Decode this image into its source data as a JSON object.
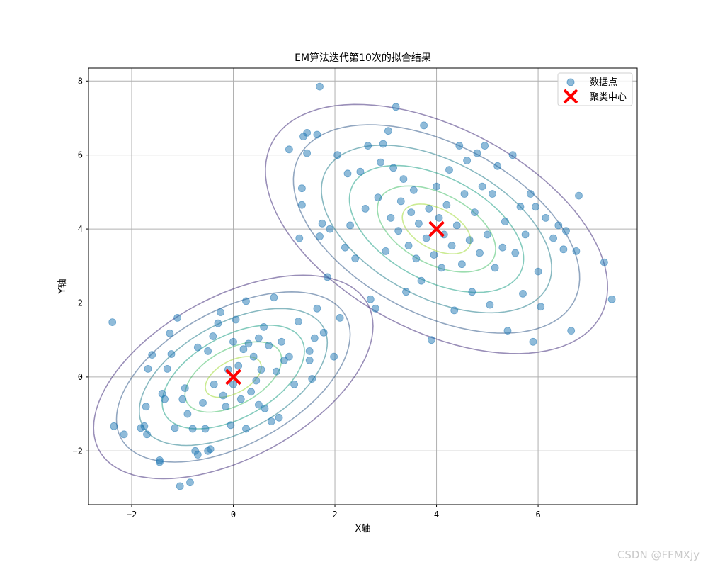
{
  "watermark": "CSDN @FFMXjy",
  "chart_data": {
    "type": "scatter",
    "title": "EM算法迭代第10次的拟合结果",
    "xlabel": "X轴",
    "ylabel": "Y轴",
    "xlim": [
      -2.85,
      7.95
    ],
    "ylim": [
      -3.45,
      8.35
    ],
    "xticks": [
      -2,
      0,
      2,
      4,
      6
    ],
    "yticks": [
      -2,
      0,
      2,
      4,
      6,
      8
    ],
    "grid": true,
    "legend_position": "top-right",
    "colors": {
      "points": "#1f77b4",
      "centers": "#ff0000",
      "contours": [
        "#46327e",
        "#365c8d",
        "#277f8e",
        "#1fa187",
        "#4ac16d",
        "#a0da39"
      ]
    },
    "series": [
      {
        "name": "数据点",
        "marker": "circle",
        "points": [
          [
            -2.38,
            1.48
          ],
          [
            -2.35,
            -1.33
          ],
          [
            -2.15,
            -1.55
          ],
          [
            -1.82,
            -1.38
          ],
          [
            -1.75,
            -1.33
          ],
          [
            -1.72,
            -0.8
          ],
          [
            -1.7,
            -1.55
          ],
          [
            -1.68,
            0.22
          ],
          [
            -1.6,
            0.6
          ],
          [
            -1.45,
            -2.25
          ],
          [
            -1.45,
            -2.3
          ],
          [
            -1.4,
            -0.45
          ],
          [
            -1.35,
            -0.6
          ],
          [
            -1.3,
            0.22
          ],
          [
            -1.25,
            1.18
          ],
          [
            -1.22,
            0.62
          ],
          [
            -1.15,
            -1.38
          ],
          [
            -1.1,
            1.6
          ],
          [
            -1.05,
            -2.95
          ],
          [
            -1.0,
            -0.6
          ],
          [
            -0.95,
            -0.3
          ],
          [
            -0.9,
            -1.0
          ],
          [
            -0.85,
            -2.85
          ],
          [
            -0.8,
            -1.4
          ],
          [
            -0.75,
            -2.0
          ],
          [
            -0.7,
            -2.1
          ],
          [
            -0.7,
            0.8
          ],
          [
            -0.6,
            -0.7
          ],
          [
            -0.55,
            -1.4
          ],
          [
            -0.5,
            0.7
          ],
          [
            -0.5,
            -2.0
          ],
          [
            -0.45,
            -1.95
          ],
          [
            -0.4,
            1.1
          ],
          [
            -0.38,
            -0.2
          ],
          [
            -0.3,
            1.45
          ],
          [
            -0.25,
            1.75
          ],
          [
            -0.2,
            -0.5
          ],
          [
            -0.15,
            -0.8
          ],
          [
            -0.1,
            0.2
          ],
          [
            -0.05,
            -1.3
          ],
          [
            0.0,
            0.95
          ],
          [
            0.0,
            -0.2
          ],
          [
            0.05,
            1.55
          ],
          [
            0.1,
            0.3
          ],
          [
            0.15,
            -0.6
          ],
          [
            0.2,
            0.75
          ],
          [
            0.25,
            -1.4
          ],
          [
            0.25,
            2.05
          ],
          [
            0.3,
            0.9
          ],
          [
            0.35,
            -0.4
          ],
          [
            0.4,
            0.55
          ],
          [
            0.45,
            -0.1
          ],
          [
            0.5,
            1.05
          ],
          [
            0.5,
            -0.75
          ],
          [
            0.55,
            0.2
          ],
          [
            0.6,
            1.35
          ],
          [
            0.62,
            -0.85
          ],
          [
            0.7,
            0.85
          ],
          [
            0.75,
            -1.2
          ],
          [
            0.8,
            2.15
          ],
          [
            0.85,
            0.15
          ],
          [
            0.9,
            -1.1
          ],
          [
            0.95,
            0.95
          ],
          [
            1.0,
            0.45
          ],
          [
            1.1,
            0.55
          ],
          [
            1.1,
            6.15
          ],
          [
            1.2,
            -0.2
          ],
          [
            1.28,
            1.5
          ],
          [
            1.3,
            3.75
          ],
          [
            1.35,
            4.65
          ],
          [
            1.35,
            5.1
          ],
          [
            1.38,
            6.5
          ],
          [
            1.45,
            6.6
          ],
          [
            1.45,
            6.05
          ],
          [
            1.5,
            0.45
          ],
          [
            1.5,
            0.7
          ],
          [
            1.55,
            -0.05
          ],
          [
            1.6,
            1.05
          ],
          [
            1.65,
            1.85
          ],
          [
            1.65,
            6.55
          ],
          [
            1.7,
            7.85
          ],
          [
            1.7,
            3.8
          ],
          [
            1.75,
            4.15
          ],
          [
            1.78,
            1.2
          ],
          [
            1.85,
            2.7
          ],
          [
            1.9,
            4.0
          ],
          [
            1.98,
            0.55
          ],
          [
            2.05,
            6.0
          ],
          [
            2.1,
            1.6
          ],
          [
            2.2,
            3.5
          ],
          [
            2.25,
            5.5
          ],
          [
            2.3,
            4.1
          ],
          [
            2.4,
            3.2
          ],
          [
            2.5,
            5.55
          ],
          [
            2.6,
            4.55
          ],
          [
            2.65,
            6.25
          ],
          [
            2.7,
            2.1
          ],
          [
            2.8,
            1.85
          ],
          [
            2.85,
            4.85
          ],
          [
            2.9,
            5.8
          ],
          [
            2.95,
            6.3
          ],
          [
            3.0,
            3.4
          ],
          [
            3.05,
            6.65
          ],
          [
            3.1,
            4.3
          ],
          [
            3.15,
            5.65
          ],
          [
            3.2,
            7.3
          ],
          [
            3.25,
            3.95
          ],
          [
            3.3,
            4.75
          ],
          [
            3.35,
            5.35
          ],
          [
            3.4,
            2.3
          ],
          [
            3.45,
            3.55
          ],
          [
            3.5,
            4.45
          ],
          [
            3.55,
            5.05
          ],
          [
            3.6,
            3.2
          ],
          [
            3.65,
            4.15
          ],
          [
            3.7,
            2.6
          ],
          [
            3.75,
            6.8
          ],
          [
            3.8,
            3.75
          ],
          [
            3.85,
            4.55
          ],
          [
            3.9,
            1.0
          ],
          [
            3.95,
            3.3
          ],
          [
            4.0,
            5.15
          ],
          [
            4.05,
            4.3
          ],
          [
            4.1,
            2.95
          ],
          [
            4.15,
            3.85
          ],
          [
            4.2,
            4.65
          ],
          [
            4.25,
            5.6
          ],
          [
            4.3,
            3.55
          ],
          [
            4.35,
            1.8
          ],
          [
            4.4,
            4.1
          ],
          [
            4.45,
            6.25
          ],
          [
            4.5,
            3.05
          ],
          [
            4.55,
            4.95
          ],
          [
            4.6,
            5.85
          ],
          [
            4.65,
            3.7
          ],
          [
            4.7,
            2.3
          ],
          [
            4.75,
            4.45
          ],
          [
            4.8,
            6.05
          ],
          [
            4.85,
            3.35
          ],
          [
            4.9,
            5.15
          ],
          [
            4.95,
            6.25
          ],
          [
            5.0,
            3.85
          ],
          [
            5.05,
            1.95
          ],
          [
            5.1,
            4.95
          ],
          [
            5.15,
            2.95
          ],
          [
            5.2,
            5.7
          ],
          [
            5.3,
            3.5
          ],
          [
            5.35,
            4.2
          ],
          [
            5.4,
            1.25
          ],
          [
            5.5,
            6.0
          ],
          [
            5.55,
            3.35
          ],
          [
            5.65,
            4.6
          ],
          [
            5.7,
            2.25
          ],
          [
            5.75,
            3.85
          ],
          [
            5.85,
            4.95
          ],
          [
            5.9,
            0.95
          ],
          [
            5.95,
            4.6
          ],
          [
            6.0,
            2.85
          ],
          [
            6.05,
            1.9
          ],
          [
            6.15,
            4.3
          ],
          [
            6.3,
            3.75
          ],
          [
            6.4,
            4.1
          ],
          [
            6.5,
            3.45
          ],
          [
            6.55,
            3.95
          ],
          [
            6.65,
            1.25
          ],
          [
            6.75,
            3.4
          ],
          [
            6.8,
            4.9
          ],
          [
            7.3,
            3.1
          ],
          [
            7.45,
            2.1
          ]
        ]
      },
      {
        "name": "聚类中心",
        "marker": "x",
        "points": [
          [
            0.0,
            0.0
          ],
          [
            4.0,
            4.0
          ]
        ]
      }
    ],
    "gaussian_components": [
      {
        "mean": [
          0.0,
          0.0
        ],
        "cov": [
          [
            1.0,
            0.5
          ],
          [
            0.5,
            1.0
          ]
        ]
      },
      {
        "mean": [
          4.0,
          4.0
        ],
        "cov": [
          [
            1.5,
            -0.7
          ],
          [
            -0.7,
            1.5
          ]
        ]
      }
    ]
  }
}
